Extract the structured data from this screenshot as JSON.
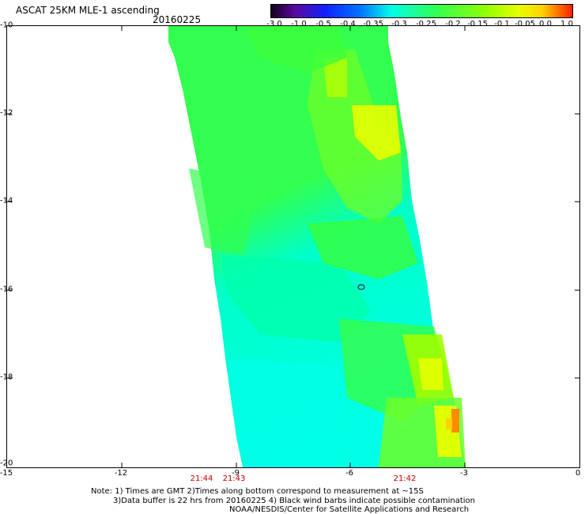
{
  "header": {
    "title": "ASCAT 25KM MLE-1 ascending",
    "date": "20160225"
  },
  "colorbar": {
    "labels": [
      "-3.0",
      "-1.0",
      "-0.5",
      "-0.4",
      "-0.35",
      "-0.3",
      "-0.25",
      "-0.2",
      "-0.15",
      "-0.1",
      "-0.05",
      "0.0",
      "1.0"
    ],
    "colors": [
      "#14001e",
      "#5a0aa0",
      "#1020ff",
      "#0078ff",
      "#00c8ff",
      "#00ffe6",
      "#00ffb4",
      "#32ff50",
      "#96ff00",
      "#e6ff00",
      "#ffd200",
      "#ff8c00",
      "#ff1e00"
    ]
  },
  "map": {
    "y_axis_labels": [
      "-10",
      "-12",
      "-14",
      "-16",
      "-18",
      "-20"
    ],
    "x_axis_labels": [
      "-15",
      "-12",
      "-9",
      "-6",
      "-3",
      "0"
    ],
    "lat_range": [
      -20,
      -10
    ],
    "lon_range": [
      -15,
      0
    ],
    "time_labels": [
      {
        "text": "21:44",
        "lon": -10.5
      },
      {
        "text": "21:43",
        "lon": -9.3
      },
      {
        "text": "21:42",
        "lon": -3.9
      }
    ],
    "swath_color_fill": {
      "cyan": "#00ffe6",
      "green": "#32ff50",
      "yellow": "#e6ff00",
      "orange": "#ff8c00"
    },
    "marker": "small black circle near -16 latitude"
  },
  "footer": {
    "note_line1": "Note: 1) Times are GMT 2)Times along bottom correspond to measurement at ~15S",
    "note_line2": "3)Data buffer is 22 hrs from 20160225 4) Black wind barbs indicate possible contamination",
    "note_line3": "NOAA/NESDIS/Center for Satellite Applications and Research"
  }
}
